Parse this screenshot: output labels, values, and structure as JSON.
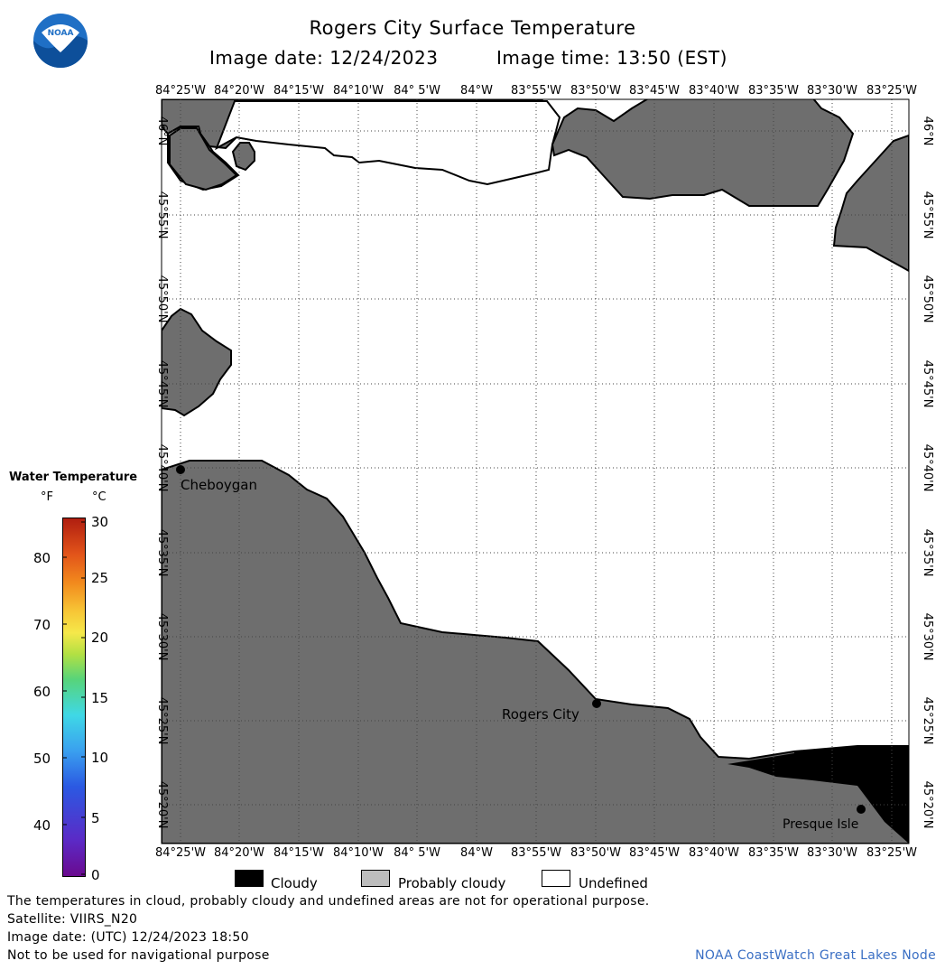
{
  "header": {
    "title": "Rogers City Surface Temperature",
    "image_date_label": "Image date: 12/24/2023",
    "image_time_label": "Image time: 13:50 (EST)"
  },
  "logo": {
    "text": "NOAA"
  },
  "map": {
    "longitude_labels": [
      "84°25'W",
      "84°20'W",
      "84°15'W",
      "84°10'W",
      "84° 5'W",
      "84°W",
      "83°55'W",
      "83°50'W",
      "83°45'W",
      "83°40'W",
      "83°35'W",
      "83°30'W",
      "83°25'W"
    ],
    "latitude_labels": [
      "46°N",
      "45°55'N",
      "45°50'N",
      "45°45'N",
      "45°40'N",
      "45°35'N",
      "45°30'N",
      "45°25'N",
      "45°20'N"
    ],
    "places": [
      {
        "name": "Cheboygan"
      },
      {
        "name": "Rogers City"
      },
      {
        "name": "Presque Isle"
      }
    ],
    "colors": {
      "land": "#6e6e6e",
      "cloud": "#000000",
      "undefined": "#ffffff"
    }
  },
  "colorbar": {
    "title": "Water Temperature",
    "unit_f": "°F",
    "unit_c": "°C",
    "fahrenheit_ticks": [
      "80",
      "70",
      "60",
      "50",
      "40"
    ],
    "celsius_ticks": [
      "30",
      "25",
      "20",
      "15",
      "10",
      "5",
      "0"
    ]
  },
  "legend": {
    "cloudy": "Cloudy",
    "probably_cloudy": "Probably cloudy",
    "undefined": "Undefined"
  },
  "footer": {
    "disclaimer": "The temperatures in cloud, probably cloudy and undefined areas are not for operational purpose.",
    "satellite": "Satellite: VIIRS_N20",
    "utc_date": "Image date: (UTC) 12/24/2023  18:50",
    "navigation": "Not to be used for navigational purpose",
    "credit": "NOAA CoastWatch Great Lakes Node"
  }
}
